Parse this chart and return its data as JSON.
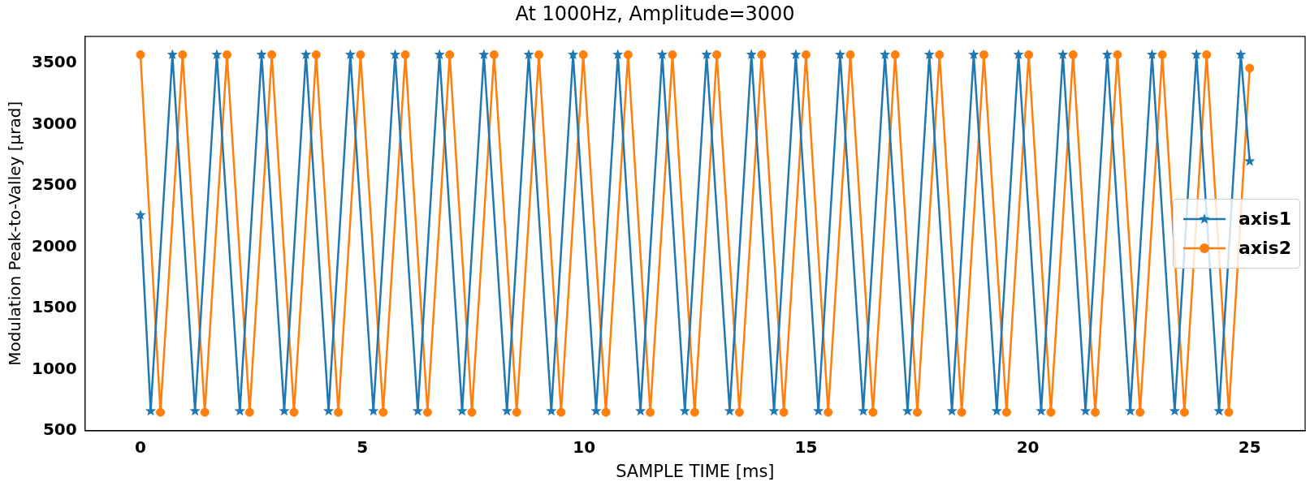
{
  "chart_data": {
    "type": "line",
    "title": "At 1000Hz, Amplitude=3000",
    "xlabel": "SAMPLE TIME [ms]",
    "ylabel": "Modulation Peak-to-Valley [μrad]",
    "xlim": [
      -1.25,
      26.25
    ],
    "xticks": [
      0,
      5,
      10,
      15,
      20,
      25
    ],
    "ylim": [
      500,
      3720
    ],
    "yticks": [
      500,
      1000,
      1500,
      2000,
      2500,
      3000,
      3500
    ],
    "grid": false,
    "legend": "right",
    "line_style": "solid",
    "series": [
      {
        "name": "axis1",
        "color": "#1f77b4",
        "marker": "star",
        "x": [
          0,
          0.23,
          0.72,
          1.23,
          1.72,
          2.24,
          2.73,
          3.24,
          3.73,
          4.24,
          4.73,
          5.25,
          5.74,
          6.25,
          6.74,
          7.25,
          7.74,
          8.26,
          8.75,
          9.26,
          9.75,
          10.27,
          10.76,
          11.27,
          11.76,
          12.27,
          12.76,
          13.28,
          13.77,
          14.28,
          14.77,
          15.28,
          15.77,
          16.29,
          16.78,
          17.29,
          17.78,
          18.29,
          18.78,
          19.3,
          19.79,
          20.3,
          20.79,
          21.3,
          21.79,
          22.31,
          22.8,
          23.31,
          23.8,
          24.31,
          24.8,
          25
        ],
        "values": [
          2260,
          660,
          3570,
          660,
          3570,
          660,
          3570,
          660,
          3570,
          660,
          3570,
          660,
          3570,
          660,
          3570,
          660,
          3570,
          660,
          3570,
          660,
          3570,
          660,
          3570,
          660,
          3570,
          660,
          3570,
          660,
          3570,
          660,
          3570,
          660,
          3570,
          660,
          3570,
          660,
          3570,
          660,
          3570,
          660,
          3570,
          660,
          3570,
          660,
          3570,
          660,
          3570,
          660,
          3570,
          660,
          3570,
          2700
        ]
      },
      {
        "name": "axis2",
        "color": "#ff7f0e",
        "marker": "circle",
        "x": [
          0,
          0.45,
          0.95,
          1.45,
          1.95,
          2.46,
          2.96,
          3.46,
          3.96,
          4.46,
          4.96,
          5.47,
          5.97,
          6.47,
          6.97,
          7.47,
          7.97,
          8.48,
          8.98,
          9.48,
          9.98,
          10.49,
          10.99,
          11.49,
          11.99,
          12.49,
          12.99,
          13.5,
          14,
          14.5,
          15,
          15.5,
          16,
          16.51,
          17.01,
          17.51,
          18.01,
          18.51,
          19.01,
          19.52,
          20.02,
          20.52,
          21.02,
          21.52,
          22.02,
          22.53,
          23.03,
          23.53,
          24.03,
          24.53,
          25
        ],
        "values": [
          3570,
          650,
          3570,
          650,
          3570,
          650,
          3570,
          650,
          3570,
          650,
          3570,
          650,
          3570,
          650,
          3570,
          650,
          3570,
          650,
          3570,
          650,
          3570,
          650,
          3570,
          650,
          3570,
          650,
          3570,
          650,
          3570,
          650,
          3570,
          650,
          3570,
          650,
          3570,
          650,
          3570,
          650,
          3570,
          650,
          3570,
          650,
          3570,
          650,
          3570,
          650,
          3570,
          650,
          3570,
          650,
          3460
        ]
      }
    ]
  }
}
